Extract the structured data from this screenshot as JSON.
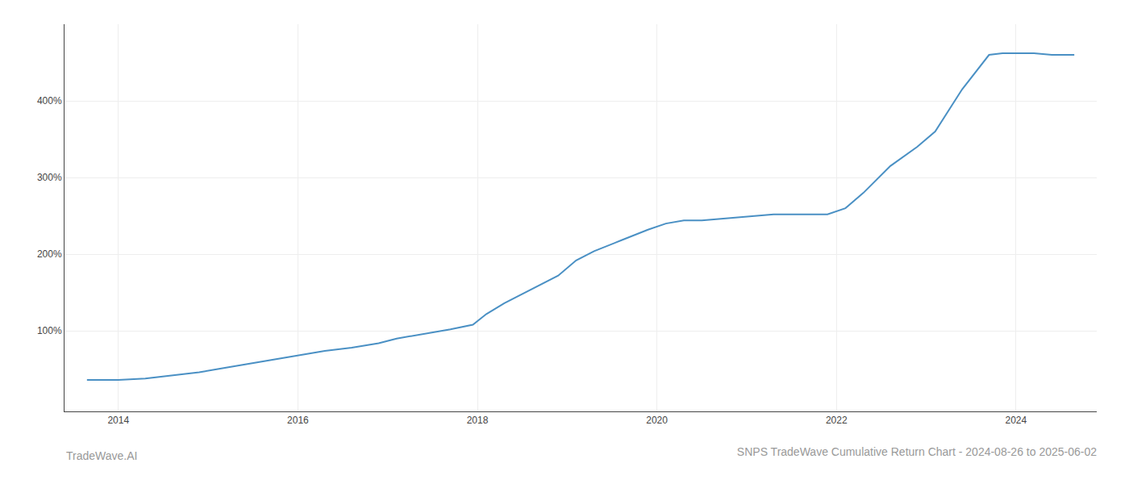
{
  "chart_data": {
    "type": "line",
    "title": "SNPS TradeWave Cumulative Return Chart - 2024-08-26 to 2025-06-02",
    "annotations": [
      "TradeWave.AI"
    ],
    "x": [
      2013.65,
      2014.0,
      2014.3,
      2014.6,
      2014.9,
      2015.2,
      2015.5,
      2015.8,
      2016.0,
      2016.3,
      2016.6,
      2016.9,
      2017.1,
      2017.4,
      2017.7,
      2017.95,
      2018.1,
      2018.3,
      2018.6,
      2018.9,
      2019.1,
      2019.3,
      2019.6,
      2019.9,
      2020.1,
      2020.3,
      2020.5,
      2020.7,
      2020.9,
      2021.1,
      2021.3,
      2021.5,
      2021.7,
      2021.9,
      2022.1,
      2022.3,
      2022.6,
      2022.9,
      2023.1,
      2023.4,
      2023.7,
      2023.85,
      2024.0,
      2024.2,
      2024.4,
      2024.65
    ],
    "values": [
      36,
      36,
      38,
      42,
      46,
      52,
      58,
      64,
      68,
      74,
      78,
      84,
      90,
      96,
      102,
      108,
      122,
      136,
      154,
      172,
      192,
      204,
      218,
      232,
      240,
      244,
      244,
      246,
      248,
      250,
      252,
      252,
      252,
      252,
      260,
      280,
      315,
      340,
      360,
      415,
      460,
      462,
      462,
      462,
      460,
      460
    ],
    "color": "#4a90c4",
    "xlim": [
      2013.4,
      2024.9
    ],
    "xticks": [
      2014,
      2016,
      2018,
      2020,
      2022,
      2024
    ],
    "ylim": [
      -5,
      500
    ],
    "yticks": [
      {
        "value": 100,
        "label": "100%"
      },
      {
        "value": 200,
        "label": "200%"
      },
      {
        "value": 300,
        "label": "300%"
      },
      {
        "value": 400,
        "label": "400%"
      }
    ],
    "grid": true
  }
}
